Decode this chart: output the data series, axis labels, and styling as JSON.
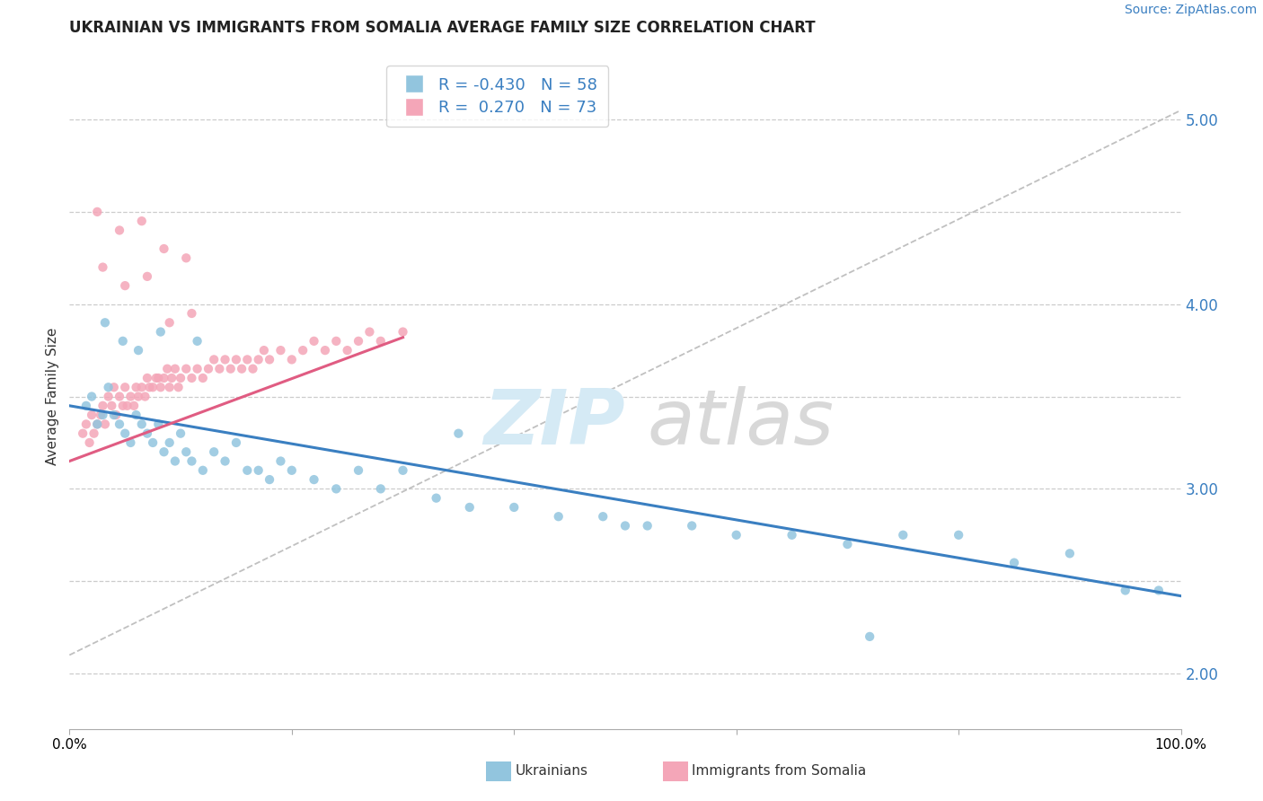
{
  "title": "UKRAINIAN VS IMMIGRANTS FROM SOMALIA AVERAGE FAMILY SIZE CORRELATION CHART",
  "source": "Source: ZipAtlas.com",
  "ylabel": "Average Family Size",
  "yticks_right": [
    2.0,
    3.0,
    4.0,
    5.0
  ],
  "blue_color": "#92c5de",
  "pink_color": "#f4a6b8",
  "trend_blue": "#3a7fc1",
  "trend_pink": "#e05c82",
  "trend_gray": "#c0c0c0",
  "blue_scatter_x": [
    1.5,
    2.0,
    2.5,
    3.0,
    3.5,
    4.0,
    4.5,
    5.0,
    5.5,
    6.0,
    6.5,
    7.0,
    7.5,
    8.0,
    8.5,
    9.0,
    9.5,
    10.0,
    10.5,
    11.0,
    12.0,
    13.0,
    14.0,
    15.0,
    16.0,
    17.0,
    18.0,
    20.0,
    22.0,
    24.0,
    26.0,
    28.0,
    30.0,
    33.0,
    36.0,
    40.0,
    44.0,
    48.0,
    52.0,
    56.0,
    60.0,
    65.0,
    70.0,
    75.0,
    80.0,
    85.0,
    90.0,
    95.0,
    98.0,
    3.2,
    4.8,
    6.2,
    8.2,
    11.5,
    19.0,
    35.0,
    50.0,
    72.0
  ],
  "blue_scatter_y": [
    3.45,
    3.5,
    3.35,
    3.4,
    3.55,
    3.4,
    3.35,
    3.3,
    3.25,
    3.4,
    3.35,
    3.3,
    3.25,
    3.35,
    3.2,
    3.25,
    3.15,
    3.3,
    3.2,
    3.15,
    3.1,
    3.2,
    3.15,
    3.25,
    3.1,
    3.1,
    3.05,
    3.1,
    3.05,
    3.0,
    3.1,
    3.0,
    3.1,
    2.95,
    2.9,
    2.9,
    2.85,
    2.85,
    2.8,
    2.8,
    2.75,
    2.75,
    2.7,
    2.75,
    2.75,
    2.6,
    2.65,
    2.45,
    2.45,
    3.9,
    3.8,
    3.75,
    3.85,
    3.8,
    3.15,
    3.3,
    2.8,
    2.2
  ],
  "pink_scatter_x": [
    1.2,
    1.5,
    1.8,
    2.0,
    2.2,
    2.5,
    2.8,
    3.0,
    3.2,
    3.5,
    3.8,
    4.0,
    4.2,
    4.5,
    4.8,
    5.0,
    5.2,
    5.5,
    5.8,
    6.0,
    6.2,
    6.5,
    6.8,
    7.0,
    7.2,
    7.5,
    7.8,
    8.0,
    8.2,
    8.5,
    8.8,
    9.0,
    9.2,
    9.5,
    9.8,
    10.0,
    10.5,
    11.0,
    11.5,
    12.0,
    12.5,
    13.0,
    13.5,
    14.0,
    14.5,
    15.0,
    15.5,
    16.0,
    16.5,
    17.0,
    17.5,
    18.0,
    19.0,
    20.0,
    21.0,
    22.0,
    23.0,
    24.0,
    25.0,
    26.0,
    27.0,
    28.0,
    30.0,
    3.0,
    5.0,
    7.0,
    9.0,
    11.0,
    4.5,
    6.5,
    8.5,
    2.5,
    10.5
  ],
  "pink_scatter_y": [
    3.3,
    3.35,
    3.25,
    3.4,
    3.3,
    3.35,
    3.4,
    3.45,
    3.35,
    3.5,
    3.45,
    3.55,
    3.4,
    3.5,
    3.45,
    3.55,
    3.45,
    3.5,
    3.45,
    3.55,
    3.5,
    3.55,
    3.5,
    3.6,
    3.55,
    3.55,
    3.6,
    3.6,
    3.55,
    3.6,
    3.65,
    3.55,
    3.6,
    3.65,
    3.55,
    3.6,
    3.65,
    3.6,
    3.65,
    3.6,
    3.65,
    3.7,
    3.65,
    3.7,
    3.65,
    3.7,
    3.65,
    3.7,
    3.65,
    3.7,
    3.75,
    3.7,
    3.75,
    3.7,
    3.75,
    3.8,
    3.75,
    3.8,
    3.75,
    3.8,
    3.85,
    3.8,
    3.85,
    4.2,
    4.1,
    4.15,
    3.9,
    3.95,
    4.4,
    4.45,
    4.3,
    4.5,
    4.25
  ]
}
